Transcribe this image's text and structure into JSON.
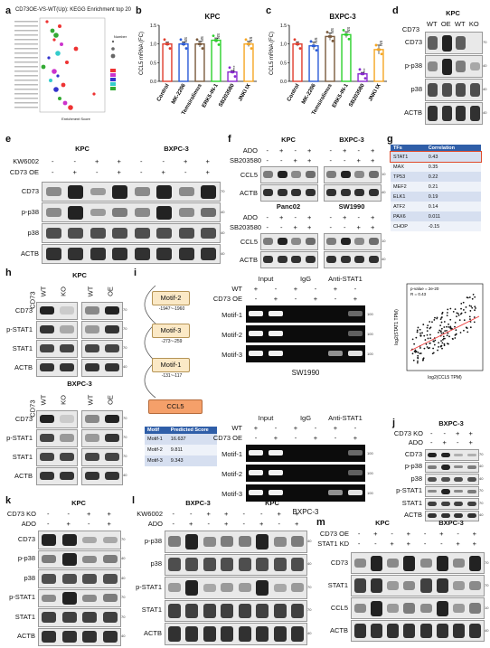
{
  "panel_letters": {
    "a": "a",
    "b": "b",
    "c": "c",
    "d": "d",
    "e": "e",
    "f": "f",
    "g": "g",
    "h": "h",
    "i": "i",
    "j": "j",
    "k": "k",
    "l": "l",
    "m": "m"
  },
  "panel_a": {
    "title": "CD73OE-VS-WT(Up): KEGG Enrichment top 20",
    "xlabel": "Enrichment Score",
    "legend_title": "Number"
  },
  "panel_b": {
    "title": "KPC",
    "ylabel": "CCL5 mRNA (FC)"
  },
  "panel_c": {
    "title": "BXPC-3",
    "ylabel": "CCL5 mRNA (FC)"
  },
  "bar_categories": [
    "Control",
    "MK-2206",
    "Temsirolimus",
    "ERK5-IN-1",
    "SB203580",
    "JNKI IX"
  ],
  "chart_data": [
    {
      "type": "bar",
      "title": "KPC",
      "ylabel": "CCL5 mRNA (FC)",
      "categories": [
        "Control",
        "MK-2206",
        "Temsirolimus",
        "ERK5-IN-1",
        "SB203580",
        "JNKI IX"
      ],
      "values": [
        1.0,
        1.0,
        1.0,
        1.1,
        0.25,
        1.0
      ],
      "errors": [
        0.05,
        0.06,
        0.08,
        0.06,
        0.04,
        0.07
      ],
      "colors": [
        "#e03c2c",
        "#2a5bd7",
        "#7a5a3c",
        "#2bd12b",
        "#8a2bd1",
        "#f5a623"
      ],
      "significance": [
        "",
        "NS",
        "NS",
        "NS",
        "****",
        "NS"
      ],
      "ylim": [
        0,
        1.5
      ],
      "yticks": [
        "0.0",
        "0.5",
        "1.0",
        "1.5"
      ]
    },
    {
      "type": "bar",
      "title": "BXPC-3",
      "ylabel": "CCL5 mRNA (FC)",
      "categories": [
        "Control",
        "MK-2206",
        "Temsirolimus",
        "ERK5-IN-1",
        "SB203580",
        "JNKI IX"
      ],
      "values": [
        1.0,
        0.95,
        1.2,
        1.25,
        0.2,
        0.85
      ],
      "errors": [
        0.06,
        0.1,
        0.1,
        0.08,
        0.04,
        0.12
      ],
      "colors": [
        "#e03c2c",
        "#2a5bd7",
        "#7a5a3c",
        "#2bd12b",
        "#8a2bd1",
        "#f5a623"
      ],
      "significance": [
        "",
        "NS",
        "NS",
        "NS",
        "***",
        "NS"
      ],
      "ylim": [
        0,
        1.5
      ],
      "yticks": [
        "0.0",
        "0.5",
        "1.0",
        "1.5"
      ]
    }
  ],
  "panel_d": {
    "title": "KPC",
    "group_label": "CD73",
    "headers": [
      "WT",
      "OE",
      "WT",
      "KO"
    ],
    "rows": [
      "CD73",
      "p-p38",
      "p38",
      "ACTB"
    ],
    "mw": [
      "70",
      "40",
      "40",
      "40"
    ]
  },
  "panel_e": {
    "titles": [
      "KPC",
      "BXPC-3"
    ],
    "cond_labels": [
      "KW6002",
      "CD73 OE"
    ],
    "kw_signs": [
      "-",
      "-",
      "+",
      "+",
      "-",
      "-",
      "+",
      "+"
    ],
    "oe_signs": [
      "-",
      "+",
      "-",
      "+",
      "-",
      "+",
      "-",
      "+"
    ],
    "rows": [
      "CD73",
      "p-p38",
      "p38",
      "ACTB"
    ],
    "mw": [
      "70",
      "40",
      "40",
      "40"
    ]
  },
  "panel_f": {
    "titles": [
      "KPC",
      "BXPC-3",
      "Panc02",
      "SW1990"
    ],
    "cond_labels": [
      "ADO",
      "SB203580"
    ],
    "ado_signs": [
      "-",
      "+",
      "-",
      "+"
    ],
    "sb_signs": [
      "-",
      "-",
      "+",
      "+"
    ],
    "rows": [
      "CCL5",
      "ACTB"
    ],
    "mw": [
      "10",
      "40"
    ]
  },
  "panel_g": {
    "headers": [
      "TFs",
      "Correlation"
    ],
    "rows": [
      [
        "STAT1",
        "0.43"
      ],
      [
        "MAX",
        "0.35"
      ],
      [
        "TP53",
        "0.22"
      ],
      [
        "MEF2",
        "0.21"
      ],
      [
        "ELK1",
        "0.19"
      ],
      [
        "ATF2",
        "0.14"
      ],
      [
        "PAX6",
        "0.011"
      ],
      [
        "CHOP",
        "-0.15"
      ]
    ]
  },
  "panel_h": {
    "titles": [
      "KPC",
      "BXPC-3"
    ],
    "group_label": "CD73",
    "headers": [
      "WT",
      "KO",
      "WT",
      "OE"
    ],
    "rows": [
      "CD73",
      "p-STAT1",
      "STAT1",
      "ACTB"
    ],
    "mw": [
      "70",
      "70",
      "70",
      "40"
    ]
  },
  "panel_i": {
    "motifs": [
      "Motif-2",
      "Motif-3",
      "Motif-1"
    ],
    "ranges": [
      "-1947~-1960",
      "-273~-259",
      "-131~-117"
    ],
    "gene": "CCL5",
    "table_headers": [
      "Motif",
      "Predicted Score"
    ],
    "table_rows": [
      [
        "Motif-1",
        "16.637"
      ],
      [
        "Motif-2",
        "9.811"
      ],
      [
        "Motif-3",
        "9.343"
      ]
    ],
    "gel_headers": [
      "Input",
      "IgG",
      "Anti-STAT1"
    ],
    "gel_conds": [
      "WT",
      "CD73 OE"
    ],
    "wt_signs": [
      "+",
      "-",
      "+",
      "-",
      "+",
      "-"
    ],
    "oe_signs": [
      "-",
      "+",
      "-",
      "+",
      "-",
      "+"
    ],
    "gel_rows": [
      "Motif-1",
      "Motif-2",
      "Motif-3"
    ],
    "gel_mw": [
      "100",
      "100",
      "100"
    ],
    "cell_lines": [
      "SW1990",
      "BXPC-3"
    ]
  },
  "scatter": {
    "xlabel": "log2(CCL5 TPM)",
    "ylabel": "log2(STAT1 TPM)",
    "legend_line1": "p-value = 2e-20",
    "legend_line2": "R = 0.43"
  },
  "panel_j": {
    "title": "BXPC-3",
    "cond_labels": [
      "CD73 KO",
      "ADO"
    ],
    "ko_signs": [
      "-",
      "-",
      "+",
      "+"
    ],
    "ado_signs": [
      "-",
      "+",
      "-",
      "+"
    ],
    "rows": [
      "CD73",
      "p-p38",
      "p38",
      "p-STAT1",
      "STAT1",
      "ACTB"
    ],
    "mw": [
      "70",
      "40",
      "40",
      "70",
      "70",
      "40"
    ]
  },
  "panel_k": {
    "title": "KPC",
    "cond_labels": [
      "CD73 KO",
      "ADO"
    ],
    "ko_signs": [
      "-",
      "-",
      "+",
      "+"
    ],
    "ado_signs": [
      "-",
      "+",
      "-",
      "+"
    ],
    "rows": [
      "CD73",
      "p-p38",
      "p38",
      "p-STAT1",
      "STAT1",
      "ACTB"
    ],
    "mw": [
      "70",
      "40",
      "40",
      "70",
      "70",
      "40"
    ]
  },
  "panel_l": {
    "titles": [
      "BXPC-3",
      "KPC"
    ],
    "cond_labels": [
      "KW6002",
      "ADO"
    ],
    "kw_signs": [
      "-",
      "-",
      "+",
      "+",
      "-",
      "-",
      "+",
      "+"
    ],
    "ado_signs": [
      "-",
      "+",
      "-",
      "+",
      "-",
      "+",
      "-",
      "+"
    ],
    "rows": [
      "p-p38",
      "p38",
      "p-STAT1",
      "STAT1",
      "ACTB"
    ],
    "mw": [
      "40",
      "40",
      "70",
      "70",
      "40"
    ]
  },
  "panel_m": {
    "titles": [
      "KPC",
      "BXPC-3"
    ],
    "cond_labels": [
      "CD73 OE",
      "STAT1 KD"
    ],
    "oe_signs": [
      "-",
      "+",
      "-",
      "+",
      "-",
      "+",
      "-",
      "+"
    ],
    "kd_signs": [
      "-",
      "-",
      "+",
      "+",
      "-",
      "-",
      "+",
      "+"
    ],
    "rows": [
      "CD73",
      "STAT1",
      "CCL5",
      "ACTB"
    ],
    "mw": [
      "70",
      "70",
      "10",
      "40"
    ]
  }
}
